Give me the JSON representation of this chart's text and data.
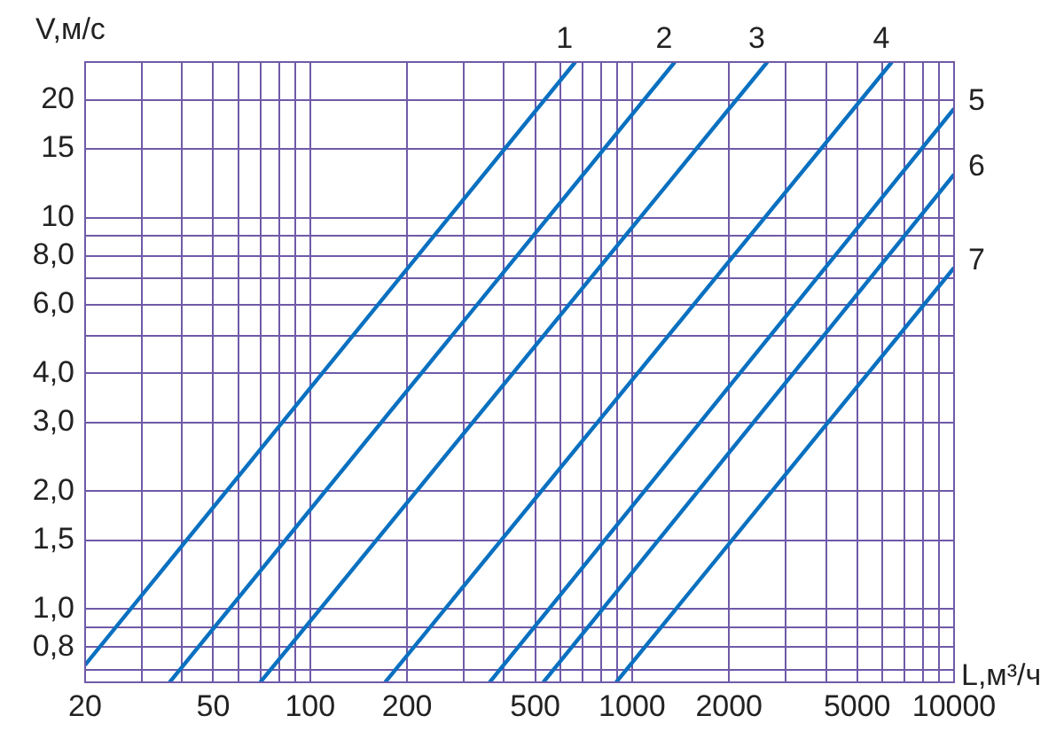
{
  "chart_data": {
    "type": "line",
    "xlabel": "L,м³/ч",
    "ylabel": "V,м/с",
    "log": "xy",
    "grid": true,
    "legend": false,
    "marker": "none",
    "line_style": "solid",
    "xlim": [
      20,
      10000
    ],
    "xticks": [
      20,
      {
        "value": 30,
        "label": null
      },
      {
        "value": 40,
        "label": null
      },
      50,
      {
        "value": 60,
        "label": null
      },
      {
        "value": 70,
        "label": null
      },
      {
        "value": 80,
        "label": null
      },
      {
        "value": 90,
        "label": null
      },
      100,
      200,
      {
        "value": 300,
        "label": null
      },
      {
        "value": 400,
        "label": null
      },
      500,
      {
        "value": 600,
        "label": null
      },
      {
        "value": 700,
        "label": null
      },
      {
        "value": 800,
        "label": null
      },
      {
        "value": 900,
        "label": null
      },
      1000,
      2000,
      {
        "value": 3000,
        "label": null
      },
      {
        "value": 4000,
        "label": null
      },
      5000,
      {
        "value": 6000,
        "label": null
      },
      {
        "value": 7000,
        "label": null
      },
      {
        "value": 8000,
        "label": null
      },
      {
        "value": 9000,
        "label": null
      },
      10000
    ],
    "ylim": [
      0.65,
      25
    ],
    "yticks": [
      {
        "value": 0.7,
        "label": null
      },
      {
        "value": 0.8,
        "label": "0,8"
      },
      {
        "value": 0.9,
        "label": null
      },
      {
        "value": 1,
        "label": "1,0"
      },
      {
        "value": 1.5,
        "label": "1,5"
      },
      {
        "value": 2,
        "label": "2,0"
      },
      {
        "value": 3,
        "label": "3,0"
      },
      {
        "value": 4,
        "label": "4,0"
      },
      {
        "value": 5,
        "label": null
      },
      {
        "value": 6,
        "label": "6,0"
      },
      {
        "value": 7,
        "label": null
      },
      {
        "value": 8,
        "label": "8,0"
      },
      {
        "value": 9,
        "label": null
      },
      10,
      15,
      20
    ],
    "series": [
      {
        "name": "1",
        "color": "#0a70c0",
        "x": [
          20,
          666
        ],
        "values": [
          0.72,
          25
        ]
      },
      {
        "name": "2",
        "color": "#0a70c0",
        "x": [
          36.6,
          1357
        ],
        "values": [
          0.65,
          25
        ]
      },
      {
        "name": "3",
        "color": "#0a70c0",
        "x": [
          70,
          2630
        ],
        "values": [
          0.65,
          25
        ]
      },
      {
        "name": "4",
        "color": "#0a70c0",
        "x": [
          171,
          6410
        ],
        "values": [
          0.65,
          25
        ]
      },
      {
        "name": "5",
        "color": "#0a70c0",
        "x": [
          361,
          10000
        ],
        "values": [
          0.65,
          19
        ]
      },
      {
        "name": "6",
        "color": "#0a70c0",
        "x": [
          530,
          10000
        ],
        "values": [
          0.65,
          12.9
        ]
      },
      {
        "name": "7",
        "color": "#0a70c0",
        "x": [
          892,
          10000
        ],
        "values": [
          0.65,
          7.45
        ]
      }
    ]
  }
}
